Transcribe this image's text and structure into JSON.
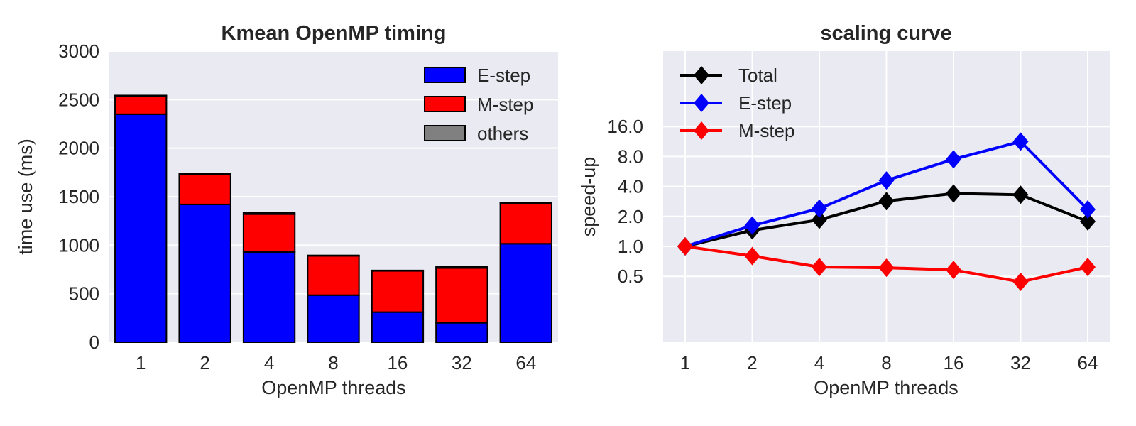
{
  "figure_title": "Kmean OpenMP timing and scaling curve figure",
  "colors": {
    "plot_background": "#eaeaf2",
    "gridline": "#ffffff",
    "text": "#262626",
    "e_step": "#0000ff",
    "m_step": "#ff0000",
    "others": "#808080",
    "total": "#000000",
    "bar_edge": "#000000"
  },
  "chart_data": [
    {
      "type": "bar",
      "stacked": true,
      "title": "Kmean OpenMP timing",
      "xlabel": "OpenMP threads",
      "ylabel": "time use (ms)",
      "categories": [
        "1",
        "2",
        "4",
        "8",
        "16",
        "32",
        "64"
      ],
      "series": [
        {
          "name": "E-step",
          "color": "#0000ff",
          "values": [
            2350,
            1420,
            930,
            485,
            310,
            200,
            1015
          ]
        },
        {
          "name": "M-step",
          "color": "#ff0000",
          "values": [
            185,
            310,
            390,
            405,
            425,
            565,
            420
          ]
        },
        {
          "name": "others",
          "color": "#808080",
          "values": [
            8,
            5,
            15,
            5,
            5,
            15,
            5
          ]
        }
      ],
      "ylim": [
        0,
        3000
      ],
      "yticks": [
        0,
        500,
        1000,
        1500,
        2000,
        2500,
        3000
      ],
      "ytick_labels": [
        "0",
        "500",
        "1000",
        "1500",
        "2000",
        "2500",
        "3000"
      ],
      "grid": "horizontal",
      "legend_position": "upper right",
      "bar_width_fraction": 0.8
    },
    {
      "type": "line",
      "title": "scaling curve",
      "xlabel": "OpenMP threads",
      "ylabel": "speed-up",
      "x": [
        1,
        2,
        4,
        8,
        16,
        32,
        64
      ],
      "xtick_labels": [
        "1",
        "2",
        "4",
        "8",
        "16",
        "32",
        "64"
      ],
      "xscale": "log2",
      "yscale": "log2",
      "series": [
        {
          "name": "Total",
          "color": "#000000",
          "values": [
            1.0,
            1.45,
            1.85,
            2.85,
            3.4,
            3.3,
            1.78
          ]
        },
        {
          "name": "E-step",
          "color": "#0000ff",
          "values": [
            1.0,
            1.62,
            2.4,
            4.6,
            7.5,
            11.3,
            2.35
          ]
        },
        {
          "name": "M-step",
          "color": "#ff0000",
          "values": [
            1.0,
            0.8,
            0.62,
            0.61,
            0.58,
            0.44,
            0.62
          ]
        }
      ],
      "yticks": [
        16.0,
        8.0,
        4.0,
        2.0,
        1.0,
        0.5
      ],
      "ytick_labels": [
        "16.0",
        "8.0",
        "4.0",
        "2.0",
        "1.0",
        "0.5"
      ],
      "grid": "both",
      "legend_position": "upper left",
      "marker": "diamond"
    }
  ]
}
